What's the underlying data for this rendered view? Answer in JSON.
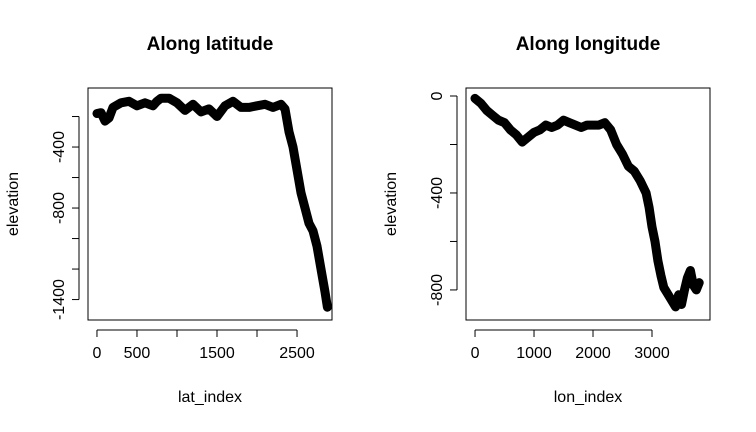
{
  "chart_data": [
    {
      "type": "line",
      "title": "Along latitude",
      "x_label": "lat_index",
      "y_label": "elevation",
      "xlim": [
        -112,
        2937
      ],
      "ylim": [
        -1534,
        -13
      ],
      "xticks": [
        0,
        500,
        {
          "value": 1000,
          "label": null
        },
        1500,
        {
          "value": 2000,
          "label": null
        },
        2500
      ],
      "yticks": [
        {
          "value": -200,
          "label": null
        },
        -400,
        {
          "value": -600,
          "label": null
        },
        -800,
        {
          "value": -1000,
          "label": null
        },
        {
          "value": -1200,
          "label": null
        },
        -1400
      ],
      "series": [
        {
          "color": "#000000",
          "x": [
            0,
            50,
            100,
            150,
            200,
            300,
            400,
            500,
            600,
            700,
            750,
            800,
            900,
            1000,
            1100,
            1200,
            1300,
            1400,
            1500,
            1600,
            1700,
            1800,
            1900,
            2000,
            2100,
            2200,
            2300,
            2350,
            2400,
            2450,
            2500,
            2550,
            2600,
            2650,
            2700,
            2750,
            2800,
            2850,
            2880
          ],
          "values": [
            -180,
            -175,
            -230,
            -210,
            -140,
            -110,
            -100,
            -130,
            -110,
            -130,
            -100,
            -80,
            -80,
            -110,
            -160,
            -120,
            -170,
            -150,
            -200,
            -130,
            -100,
            -140,
            -140,
            -130,
            -120,
            -140,
            -120,
            -150,
            -300,
            -400,
            -550,
            -700,
            -800,
            -900,
            -950,
            -1050,
            -1200,
            -1350,
            -1450
          ]
        }
      ]
    },
    {
      "type": "line",
      "title": "Along longitude",
      "x_label": "lon_index",
      "y_label": "elevation",
      "xlim": [
        -153,
        3983
      ],
      "ylim": [
        -924,
        33
      ],
      "xticks": [
        0,
        1000,
        2000,
        3000
      ],
      "yticks": [
        0,
        {
          "value": -200,
          "label": null
        },
        -400,
        {
          "value": -600,
          "label": null
        },
        -800
      ],
      "series": [
        {
          "color": "#000000",
          "x": [
            0,
            100,
            200,
            300,
            400,
            500,
            600,
            700,
            800,
            900,
            1000,
            1100,
            1200,
            1300,
            1400,
            1500,
            1600,
            1700,
            1800,
            1900,
            2000,
            2100,
            2200,
            2300,
            2400,
            2500,
            2600,
            2700,
            2800,
            2900,
            2950,
            3000,
            3050,
            3100,
            3150,
            3200,
            3300,
            3400,
            3450,
            3500,
            3550,
            3600,
            3650,
            3700,
            3750,
            3800
          ],
          "values": [
            -10,
            -30,
            -60,
            -80,
            -100,
            -110,
            -140,
            -160,
            -190,
            -170,
            -150,
            -140,
            -120,
            -130,
            -120,
            -100,
            -110,
            -120,
            -130,
            -120,
            -120,
            -120,
            -110,
            -140,
            -200,
            -240,
            -290,
            -310,
            -350,
            -400,
            -460,
            -540,
            -600,
            -680,
            -740,
            -790,
            -830,
            -870,
            -820,
            -860,
            -800,
            -750,
            -720,
            -780,
            -800,
            -770
          ]
        }
      ]
    }
  ]
}
